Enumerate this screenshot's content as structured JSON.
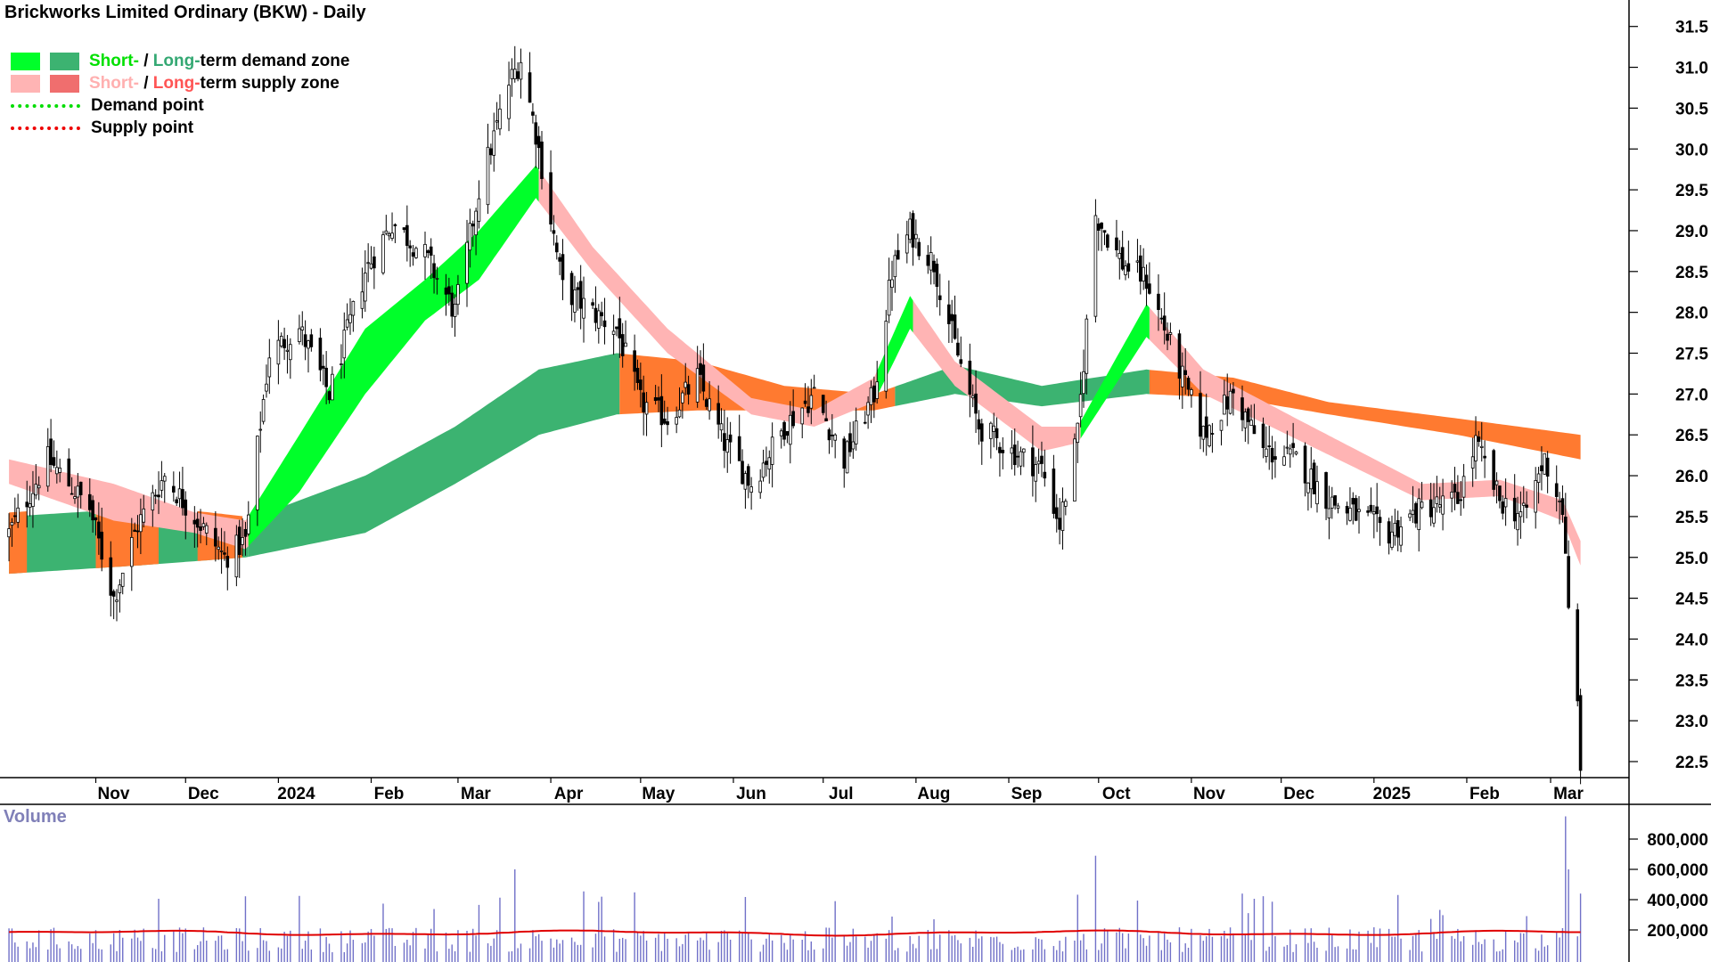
{
  "title": "Brickworks Limited Ordinary (BKW) - Daily",
  "legend": {
    "row1": {
      "short": "Short-",
      "sep": " / ",
      "long": "Long-",
      "rest": "term demand zone"
    },
    "row2": {
      "short": "Short-",
      "sep": " / ",
      "long": "Long-",
      "rest": "term supply zone"
    },
    "row3": "Demand point",
    "row4": "Supply point"
  },
  "volume_label": "Volume",
  "colors": {
    "short_demand": "#00ff2a",
    "long_demand": "#3cb371",
    "short_supply": "#ffb4b4",
    "long_supply": "#f06e6e",
    "long_supply_active": "#ff7a30",
    "volume_bar": "#7070c8",
    "volume_ma": "#e00000"
  },
  "chart_data": [
    {
      "type": "candlestick",
      "title": "Brickworks Limited Ordinary (BKW) - Daily",
      "y_ticks": [
        "22.5",
        "23.0",
        "23.5",
        "24.0",
        "24.5",
        "25.0",
        "25.5",
        "26.0",
        "26.5",
        "27.0",
        "27.5",
        "28.0",
        "28.5",
        "29.0",
        "29.5",
        "30.0",
        "30.5",
        "31.0",
        "31.5"
      ],
      "ylim": [
        22.3,
        31.7
      ],
      "x_ticks": [
        "Nov",
        "Dec",
        "2024",
        "Feb",
        "Mar",
        "Apr",
        "May",
        "Jun",
        "Jul",
        "Aug",
        "Sep",
        "Oct",
        "Nov",
        "Dec",
        "2025",
        "Feb",
        "Mar"
      ],
      "close_path": [
        {
          "date": "2023-10-03",
          "close": 25.3
        },
        {
          "date": "2023-10-16",
          "close": 26.2
        },
        {
          "date": "2023-10-30",
          "close": 25.6
        },
        {
          "date": "2023-11-07",
          "close": 24.5
        },
        {
          "date": "2023-11-15",
          "close": 25.4
        },
        {
          "date": "2023-11-24",
          "close": 26.0
        },
        {
          "date": "2023-12-04",
          "close": 25.5
        },
        {
          "date": "2023-12-14",
          "close": 25.0
        },
        {
          "date": "2023-12-21",
          "close": 25.2
        },
        {
          "date": "2023-12-29",
          "close": 27.5
        },
        {
          "date": "2024-01-08",
          "close": 27.8
        },
        {
          "date": "2024-01-18",
          "close": 27.0
        },
        {
          "date": "2024-01-30",
          "close": 28.5
        },
        {
          "date": "2024-02-08",
          "close": 29.1
        },
        {
          "date": "2024-02-19",
          "close": 28.7
        },
        {
          "date": "2024-02-29",
          "close": 28.0
        },
        {
          "date": "2024-03-08",
          "close": 29.5
        },
        {
          "date": "2024-03-18",
          "close": 30.8
        },
        {
          "date": "2024-03-22",
          "close": 31.1
        },
        {
          "date": "2024-03-27",
          "close": 30.2
        },
        {
          "date": "2024-04-05",
          "close": 28.3
        },
        {
          "date": "2024-04-15",
          "close": 28.0
        },
        {
          "date": "2024-04-23",
          "close": 27.8
        },
        {
          "date": "2024-05-01",
          "close": 26.9
        },
        {
          "date": "2024-05-10",
          "close": 26.7
        },
        {
          "date": "2024-05-20",
          "close": 27.2
        },
        {
          "date": "2024-05-29",
          "close": 26.4
        },
        {
          "date": "2024-06-07",
          "close": 25.9
        },
        {
          "date": "2024-06-18",
          "close": 26.6
        },
        {
          "date": "2024-06-28",
          "close": 27.0
        },
        {
          "date": "2024-07-08",
          "close": 26.2
        },
        {
          "date": "2024-07-18",
          "close": 27.0
        },
        {
          "date": "2024-07-24",
          "close": 28.5
        },
        {
          "date": "2024-07-30",
          "close": 29.0
        },
        {
          "date": "2024-08-07",
          "close": 28.6
        },
        {
          "date": "2024-08-14",
          "close": 27.6
        },
        {
          "date": "2024-08-22",
          "close": 26.6
        },
        {
          "date": "2024-09-02",
          "close": 26.3
        },
        {
          "date": "2024-09-12",
          "close": 26.1
        },
        {
          "date": "2024-09-18",
          "close": 25.4
        },
        {
          "date": "2024-09-24",
          "close": 26.5
        },
        {
          "date": "2024-09-30",
          "close": 29.2
        },
        {
          "date": "2024-10-09",
          "close": 28.6
        },
        {
          "date": "2024-10-17",
          "close": 28.4
        },
        {
          "date": "2024-10-25",
          "close": 27.6
        },
        {
          "date": "2024-11-05",
          "close": 26.5
        },
        {
          "date": "2024-11-15",
          "close": 27.0
        },
        {
          "date": "2024-11-25",
          "close": 26.3
        },
        {
          "date": "2024-12-06",
          "close": 26.2
        },
        {
          "date": "2024-12-17",
          "close": 25.7
        },
        {
          "date": "2025-01-06",
          "close": 25.3
        },
        {
          "date": "2025-01-17",
          "close": 25.6
        },
        {
          "date": "2025-01-29",
          "close": 25.7
        },
        {
          "date": "2025-02-04",
          "close": 26.4
        },
        {
          "date": "2025-02-12",
          "close": 25.7
        },
        {
          "date": "2025-02-20",
          "close": 25.5
        },
        {
          "date": "2025-02-27",
          "close": 26.2
        },
        {
          "date": "2025-03-05",
          "close": 25.6
        },
        {
          "date": "2025-03-07",
          "close": 24.3
        },
        {
          "date": "2025-03-10",
          "close": 23.2
        },
        {
          "date": "2025-03-11",
          "close": 22.5
        }
      ],
      "long_term_band": [
        {
          "date": "2023-10-03",
          "top": 25.5,
          "bottom": 24.8
        },
        {
          "date": "2023-11-15",
          "top": 25.6,
          "bottom": 24.9
        },
        {
          "date": "2023-12-21",
          "top": 25.45,
          "bottom": 25.0
        },
        {
          "date": "2024-01-30",
          "top": 26.0,
          "bottom": 25.3
        },
        {
          "date": "2024-02-29",
          "top": 26.6,
          "bottom": 25.9
        },
        {
          "date": "2024-03-28",
          "top": 27.3,
          "bottom": 26.5
        },
        {
          "date": "2024-04-23",
          "top": 27.5,
          "bottom": 26.75
        },
        {
          "date": "2024-05-20",
          "top": 27.4,
          "bottom": 26.8
        },
        {
          "date": "2024-06-18",
          "top": 27.1,
          "bottom": 26.8
        },
        {
          "date": "2024-07-18",
          "top": 27.0,
          "bottom": 26.8
        },
        {
          "date": "2024-08-14",
          "top": 27.35,
          "bottom": 27.0
        },
        {
          "date": "2024-09-12",
          "top": 27.1,
          "bottom": 26.85
        },
        {
          "date": "2024-10-17",
          "top": 27.3,
          "bottom": 27.0
        },
        {
          "date": "2024-11-15",
          "top": 27.2,
          "bottom": 26.95
        },
        {
          "date": "2024-12-17",
          "top": 26.9,
          "bottom": 26.75
        },
        {
          "date": "2025-01-29",
          "top": 26.7,
          "bottom": 26.5
        },
        {
          "date": "2025-03-11",
          "top": 26.5,
          "bottom": 26.2
        }
      ],
      "short_term_band": [
        {
          "date": "2023-10-03",
          "top": 26.2,
          "bottom": 25.9
        },
        {
          "date": "2023-11-07",
          "top": 25.9,
          "bottom": 25.45
        },
        {
          "date": "2023-12-04",
          "top": 25.55,
          "bottom": 25.3
        },
        {
          "date": "2023-12-21",
          "top": 25.45,
          "bottom": 25.1
        },
        {
          "date": "2024-01-08",
          "top": 26.5,
          "bottom": 25.8
        },
        {
          "date": "2024-01-30",
          "top": 27.8,
          "bottom": 27.0
        },
        {
          "date": "2024-02-19",
          "top": 28.4,
          "bottom": 27.9
        },
        {
          "date": "2024-03-08",
          "top": 29.0,
          "bottom": 28.4
        },
        {
          "date": "2024-03-27",
          "top": 29.8,
          "bottom": 29.4
        },
        {
          "date": "2024-04-15",
          "top": 28.8,
          "bottom": 28.5
        },
        {
          "date": "2024-05-10",
          "top": 27.8,
          "bottom": 27.5
        },
        {
          "date": "2024-06-07",
          "top": 26.95,
          "bottom": 26.75
        },
        {
          "date": "2024-06-28",
          "top": 26.8,
          "bottom": 26.6
        },
        {
          "date": "2024-07-18",
          "top": 27.2,
          "bottom": 26.9
        },
        {
          "date": "2024-07-30",
          "top": 28.2,
          "bottom": 27.8
        },
        {
          "date": "2024-08-14",
          "top": 27.4,
          "bottom": 27.1
        },
        {
          "date": "2024-09-12",
          "top": 26.6,
          "bottom": 26.3
        },
        {
          "date": "2024-09-24",
          "top": 26.6,
          "bottom": 26.4
        },
        {
          "date": "2024-10-17",
          "top": 28.1,
          "bottom": 27.7
        },
        {
          "date": "2024-11-05",
          "top": 27.3,
          "bottom": 27.0
        },
        {
          "date": "2024-12-06",
          "top": 26.7,
          "bottom": 26.45
        },
        {
          "date": "2025-01-17",
          "top": 25.9,
          "bottom": 25.7
        },
        {
          "date": "2025-02-12",
          "top": 25.95,
          "bottom": 25.75
        },
        {
          "date": "2025-03-05",
          "top": 25.7,
          "bottom": 25.45
        },
        {
          "date": "2025-03-11",
          "top": 25.2,
          "bottom": 24.9
        }
      ],
      "short_term_zone_colors": [
        {
          "from": "2023-10-03",
          "to": "2023-12-21",
          "zone": "supply"
        },
        {
          "from": "2023-12-21",
          "to": "2024-03-27",
          "zone": "demand"
        },
        {
          "from": "2024-03-27",
          "to": "2024-07-18",
          "zone": "supply"
        },
        {
          "from": "2024-07-18",
          "to": "2024-07-30",
          "zone": "demand"
        },
        {
          "from": "2024-07-30",
          "to": "2024-09-24",
          "zone": "supply"
        },
        {
          "from": "2024-09-24",
          "to": "2024-10-17",
          "zone": "demand"
        },
        {
          "from": "2024-10-17",
          "to": "2025-03-11",
          "zone": "supply"
        }
      ],
      "long_term_zone_colors": [
        {
          "from": "2023-10-03",
          "to": "2023-12-21",
          "zone": "mixed"
        },
        {
          "from": "2023-12-21",
          "to": "2024-04-23",
          "zone": "demand"
        },
        {
          "from": "2024-04-23",
          "to": "2024-07-24",
          "zone": "supply"
        },
        {
          "from": "2024-07-24",
          "to": "2024-10-17",
          "zone": "demand"
        },
        {
          "from": "2024-10-17",
          "to": "2025-03-11",
          "zone": "supply"
        }
      ],
      "volume": {
        "y_ticks": [
          "200,000",
          "400,000",
          "600,000",
          "800,000"
        ],
        "ylim": [
          0,
          1000000
        ],
        "typical": 150000,
        "ma_level": 180000,
        "spikes": [
          {
            "date": "2024-03-20",
            "value": 600000
          },
          {
            "date": "2024-07-05",
            "value": 390000
          },
          {
            "date": "2024-09-30",
            "value": 690000
          },
          {
            "date": "2024-11-18",
            "value": 440000
          },
          {
            "date": "2025-03-06",
            "value": 950000
          },
          {
            "date": "2025-03-07",
            "value": 600000
          },
          {
            "date": "2025-03-11",
            "value": 440000
          }
        ]
      }
    }
  ]
}
